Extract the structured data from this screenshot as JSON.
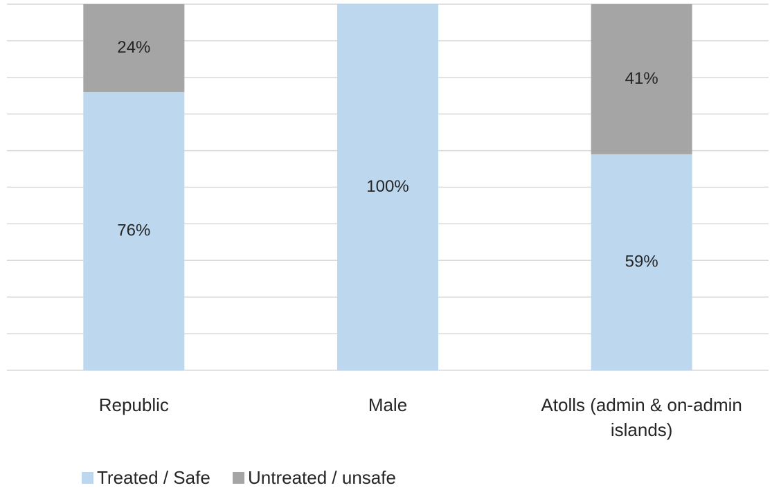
{
  "chart_data": {
    "type": "stacked_bar",
    "categories": [
      "Republic",
      "Male",
      "Atolls (admin & on-admin islands)"
    ],
    "series": [
      {
        "name": "Treated / Safe",
        "color": "#bdd7ee",
        "values": [
          76,
          100,
          59
        ],
        "value_labels": [
          "76%",
          "100%",
          "59%"
        ]
      },
      {
        "name": "Untreated / unsafe",
        "color": "#a5a5a5",
        "values": [
          24,
          0,
          41
        ],
        "value_labels": [
          "24%",
          null,
          "41%"
        ]
      }
    ],
    "ylim": [
      0,
      100
    ],
    "yticks": [
      0,
      10,
      20,
      30,
      40,
      50,
      60,
      70,
      80,
      90,
      100
    ],
    "grid": true,
    "legend": "bottom"
  }
}
